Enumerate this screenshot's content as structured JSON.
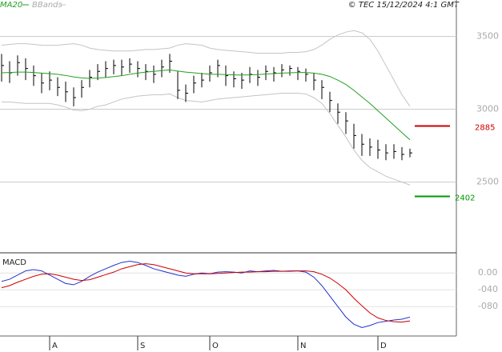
{
  "chart_data": [
    {
      "type": "ohlc",
      "source": "© TEC 15/12/2024 4:1 GMT",
      "high": [
        3380,
        3330,
        3370,
        3350,
        3300,
        3250,
        3260,
        3220,
        3190,
        3150,
        3200,
        3270,
        3310,
        3330,
        3340,
        3340,
        3350,
        3330,
        3310,
        3300,
        3340,
        3380,
        3260,
        3170,
        3230,
        3250,
        3300,
        3340,
        3300,
        3260,
        3250,
        3290,
        3270,
        3300,
        3290,
        3310,
        3300,
        3290,
        3280,
        3250,
        3200,
        3120,
        3040,
        2980,
        2900,
        2830,
        2800,
        2790,
        2760,
        2760,
        2740,
        2730
      ],
      "low": [
        3190,
        3180,
        3230,
        3200,
        3160,
        3110,
        3130,
        3090,
        3050,
        3020,
        3080,
        3150,
        3200,
        3220,
        3240,
        3230,
        3250,
        3220,
        3200,
        3180,
        3220,
        3250,
        3070,
        3050,
        3110,
        3150,
        3190,
        3220,
        3160,
        3150,
        3140,
        3180,
        3160,
        3200,
        3190,
        3220,
        3230,
        3200,
        3190,
        3130,
        3070,
        2980,
        2900,
        2830,
        2730,
        2680,
        2680,
        2660,
        2650,
        2660,
        2650,
        2670
      ],
      "close": [
        3300,
        3250,
        3320,
        3280,
        3230,
        3180,
        3200,
        3150,
        3120,
        3080,
        3150,
        3220,
        3260,
        3280,
        3300,
        3290,
        3310,
        3280,
        3260,
        3240,
        3290,
        3330,
        3130,
        3110,
        3180,
        3200,
        3250,
        3300,
        3230,
        3210,
        3200,
        3240,
        3220,
        3260,
        3250,
        3270,
        3280,
        3260,
        3240,
        3200,
        3150,
        3060,
        2980,
        2920,
        2820,
        2760,
        2740,
        2720,
        2700,
        2710,
        2690,
        2700
      ],
      "ma": {
        "name": "MA20",
        "color": "#22a022",
        "values": [
          3250,
          3252,
          3255,
          3255,
          3252,
          3248,
          3245,
          3240,
          3232,
          3222,
          3215,
          3212,
          3214,
          3218,
          3224,
          3230,
          3240,
          3248,
          3255,
          3260,
          3265,
          3270,
          3262,
          3255,
          3250,
          3245,
          3240,
          3240,
          3238,
          3236,
          3235,
          3236,
          3238,
          3242,
          3245,
          3248,
          3250,
          3252,
          3252,
          3248,
          3240,
          3225,
          3200,
          3170,
          3130,
          3085,
          3040,
          2990,
          2940,
          2890,
          2840,
          2790
        ]
      },
      "bands": {
        "name": "BBands",
        "color": "#c4c4c4",
        "upper": [
          3440,
          3445,
          3450,
          3450,
          3445,
          3440,
          3438,
          3440,
          3445,
          3450,
          3440,
          3420,
          3410,
          3405,
          3400,
          3400,
          3400,
          3405,
          3410,
          3410,
          3415,
          3420,
          3440,
          3450,
          3445,
          3440,
          3420,
          3410,
          3405,
          3400,
          3395,
          3390,
          3385,
          3385,
          3385,
          3385,
          3390,
          3390,
          3395,
          3410,
          3440,
          3480,
          3510,
          3530,
          3540,
          3525,
          3480,
          3400,
          3300,
          3200,
          3100,
          3020
        ],
        "lower": [
          3050,
          3050,
          3045,
          3040,
          3040,
          3040,
          3040,
          3030,
          3015,
          2995,
          2990,
          3000,
          3020,
          3030,
          3050,
          3070,
          3080,
          3090,
          3095,
          3100,
          3100,
          3105,
          3080,
          3060,
          3055,
          3050,
          3060,
          3070,
          3075,
          3080,
          3085,
          3090,
          3095,
          3100,
          3105,
          3110,
          3110,
          3110,
          3105,
          3080,
          3040,
          2970,
          2890,
          2810,
          2720,
          2650,
          2600,
          2570,
          2540,
          2520,
          2500,
          2480
        ]
      },
      "annotations": [
        {
          "value": 2885,
          "color": "#cc0000"
        },
        {
          "value": 2402,
          "color": "#009900"
        }
      ],
      "ylim": [
        2020,
        3750
      ],
      "yticks": [
        2500,
        3000,
        3500
      ],
      "grid": true
    },
    {
      "type": "line",
      "title": "MACD",
      "categories": [
        null,
        null,
        null,
        null,
        null,
        null,
        "A",
        null,
        null,
        null,
        null,
        null,
        null,
        null,
        null,
        null,
        null,
        "S",
        null,
        null,
        null,
        null,
        null,
        null,
        null,
        null,
        "O",
        null,
        null,
        null,
        null,
        null,
        null,
        null,
        null,
        null,
        null,
        "N",
        null,
        null,
        null,
        null,
        null,
        null,
        null,
        null,
        null,
        "D",
        null,
        null,
        null,
        null
      ],
      "series": [
        {
          "color": "#2233cc",
          "values": [
            -20,
            -15,
            -5,
            5,
            8,
            5,
            -5,
            -15,
            -25,
            -28,
            -20,
            -8,
            2,
            10,
            18,
            25,
            28,
            25,
            18,
            10,
            5,
            0,
            -5,
            -8,
            -3,
            0,
            -2,
            2,
            3,
            2,
            0,
            5,
            3,
            5,
            6,
            4,
            5,
            5,
            2,
            -10,
            -30,
            -55,
            -80,
            -105,
            -122,
            -130,
            -125,
            -118,
            -115,
            -112,
            -110,
            -105
          ]
        },
        {
          "color": "#cc0000",
          "values": [
            -35,
            -30,
            -22,
            -15,
            -8,
            -3,
            -2,
            -5,
            -10,
            -15,
            -18,
            -16,
            -10,
            -4,
            2,
            10,
            15,
            20,
            22,
            20,
            15,
            10,
            5,
            0,
            -2,
            -2,
            -2,
            -1,
            0,
            1,
            2,
            2,
            3,
            3,
            4,
            4,
            4,
            5,
            5,
            3,
            -3,
            -12,
            -25,
            -40,
            -60,
            -78,
            -95,
            -107,
            -113,
            -116,
            -117,
            -114
          ]
        }
      ],
      "ylim": [
        -150,
        48
      ],
      "yticks": [
        {
          "value": 0,
          "label": "0.00"
        },
        {
          "value": -40,
          "label": "-040"
        },
        {
          "value": -80,
          "label": "-080"
        }
      ],
      "grid": true
    }
  ]
}
